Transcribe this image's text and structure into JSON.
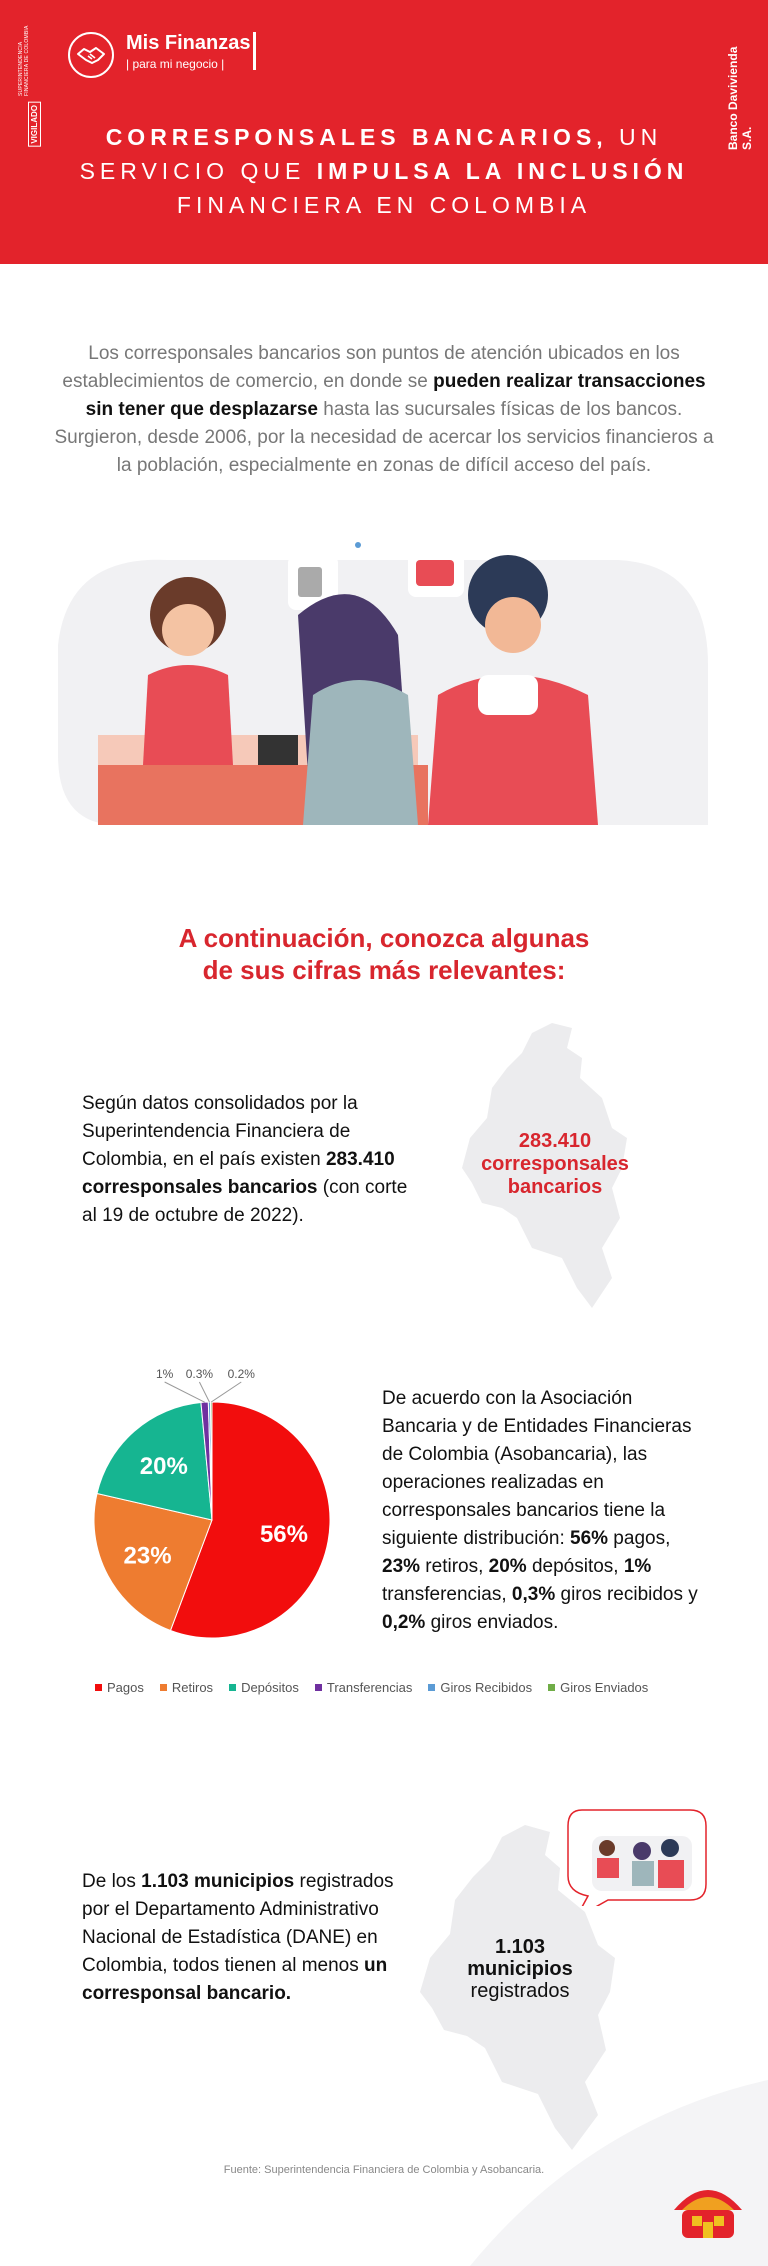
{
  "header": {
    "vigilado_small": "SUPERINTENDENCIA FINANCIERA DE COLOMBIA",
    "vigilado_label": "VIGILADO",
    "logo_title": "Mis Finanzas",
    "logo_subtitle": "| para mi negocio |",
    "bank_name": "Banco Davivienda S.A.",
    "title_line1_bold": "CORRESPONSALES BANCARIOS,",
    "title_line1_rest": " UN",
    "title_line2_pre": "SERVICIO QUE ",
    "title_line2_bold": "IMPULSA LA INCLUSIÓN",
    "title_line3": "FINANCIERA EN COLOMBIA",
    "color": "#e3232b"
  },
  "intro": {
    "part1": "Los corresponsales bancarios son puntos de atención ubicados en los establecimientos de comercio, en donde se ",
    "bold": "pueden realizar transacciones sin tener que desplazarse",
    "part2": " hasta las sucursales físicas de los bancos. Surgieron, desde 2006, por la necesidad de acercar los servicios financieros a la población, especialmente en zonas de difícil acceso del país."
  },
  "section_heading": {
    "line1": "A continuación, conozca algunas",
    "line2": "de sus cifras más relevantes:"
  },
  "block1": {
    "text_pre": "Según datos consolidados por la Superintendencia Financiera de Colombia, en el país existen ",
    "text_bold": "283.410 corresponsales bancarios",
    "text_post": " (con corte al 19 de octubre de 2022).",
    "stat_number": "283.410",
    "stat_label1": "corresponsales",
    "stat_label2": "bancarios"
  },
  "chart_data": {
    "type": "pie",
    "categories": [
      "Pagos",
      "Retiros",
      "Depósitos",
      "Transferencias",
      "Giros Recibidos",
      "Giros Enviados"
    ],
    "values": [
      56,
      23,
      20,
      1,
      0.3,
      0.2
    ],
    "labels": [
      "56%",
      "23%",
      "20%",
      "1%",
      "0.3%",
      "0.2%"
    ],
    "colors": [
      "#f20d0d",
      "#ee7c30",
      "#16b591",
      "#7030a0",
      "#5b9bd5",
      "#70ad47"
    ],
    "legend_position": "bottom"
  },
  "block2": {
    "t1": "De acuerdo con la Asociación Bancaria y de Entidades Financieras de Colombia (Asobancaria), las operaciones realizadas en corresponsales bancarios tiene la siguiente distribución: ",
    "b1": "56%",
    "t2": " pagos, ",
    "b2": "23%",
    "t3": " retiros, ",
    "b3": "20%",
    "t4": " depósitos, ",
    "b4": "1%",
    "t5": " transferencias, ",
    "b5": "0,3%",
    "t6": " giros recibidos y ",
    "b6": "0,2%",
    "t7": " giros enviados."
  },
  "block3": {
    "t1": "De los ",
    "b1": "1.103 municipios",
    "t2": " registrados por el Departamento Administrativo Nacional de Estadística (DANE) en Colombia, todos tienen al menos ",
    "b2": "un corresponsal bancario.",
    "stat_number": "1.103",
    "stat_label": "municipios",
    "stat_sub": "registrados"
  },
  "footer": {
    "source": "Fuente: Superintendencia Financiera de Colombia y Asobancaria."
  }
}
